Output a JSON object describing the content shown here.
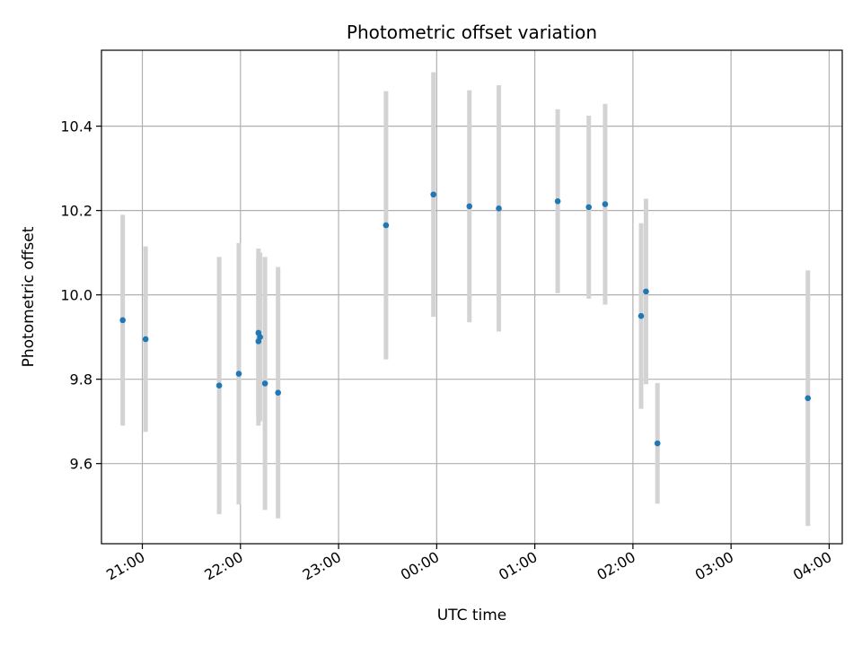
{
  "chart_data": {
    "type": "scatter",
    "title": "Photometric offset variation",
    "xlabel": "UTC time",
    "ylabel": "Photometric offset",
    "x_ticks": [
      "21:00",
      "22:00",
      "23:00",
      "00:00",
      "01:00",
      "02:00",
      "03:00",
      "04:00"
    ],
    "y_ticks": [
      "9.6",
      "9.8",
      "10.0",
      "10.2",
      "10.4"
    ],
    "xlim": [
      "20:35",
      "04:08"
    ],
    "ylim": [
      9.41,
      10.58
    ],
    "grid": true,
    "errorbar_color": "#d3d3d3",
    "marker_color": "#1f77b4",
    "series": [
      {
        "points": [
          {
            "x": "20:48",
            "y": 9.94,
            "err": 0.25
          },
          {
            "x": "21:02",
            "y": 9.895,
            "err": 0.22
          },
          {
            "x": "21:47",
            "y": 9.785,
            "err": 0.305
          },
          {
            "x": "21:59",
            "y": 9.813,
            "err": 0.31
          },
          {
            "x": "22:11",
            "y": 9.91,
            "err": 0.2
          },
          {
            "x": "22:11",
            "y": 9.89,
            "err": 0.2
          },
          {
            "x": "22:12",
            "y": 9.9,
            "err": 0.2
          },
          {
            "x": "22:15",
            "y": 9.79,
            "err": 0.3
          },
          {
            "x": "22:23",
            "y": 9.768,
            "err": 0.298
          },
          {
            "x": "23:29",
            "y": 10.165,
            "err": 0.318
          },
          {
            "x": "23:58",
            "y": 10.238,
            "err": 0.29
          },
          {
            "x": "00:20",
            "y": 10.21,
            "err": 0.275
          },
          {
            "x": "00:38",
            "y": 10.205,
            "err": 0.292
          },
          {
            "x": "01:14",
            "y": 10.222,
            "err": 0.218
          },
          {
            "x": "01:33",
            "y": 10.208,
            "err": 0.217
          },
          {
            "x": "01:43",
            "y": 10.215,
            "err": 0.238
          },
          {
            "x": "02:05",
            "y": 9.95,
            "err": 0.22
          },
          {
            "x": "02:08",
            "y": 10.008,
            "err": 0.22
          },
          {
            "x": "02:15",
            "y": 9.648,
            "err": 0.143
          },
          {
            "x": "03:47",
            "y": 9.755,
            "err": 0.303
          }
        ]
      }
    ]
  }
}
